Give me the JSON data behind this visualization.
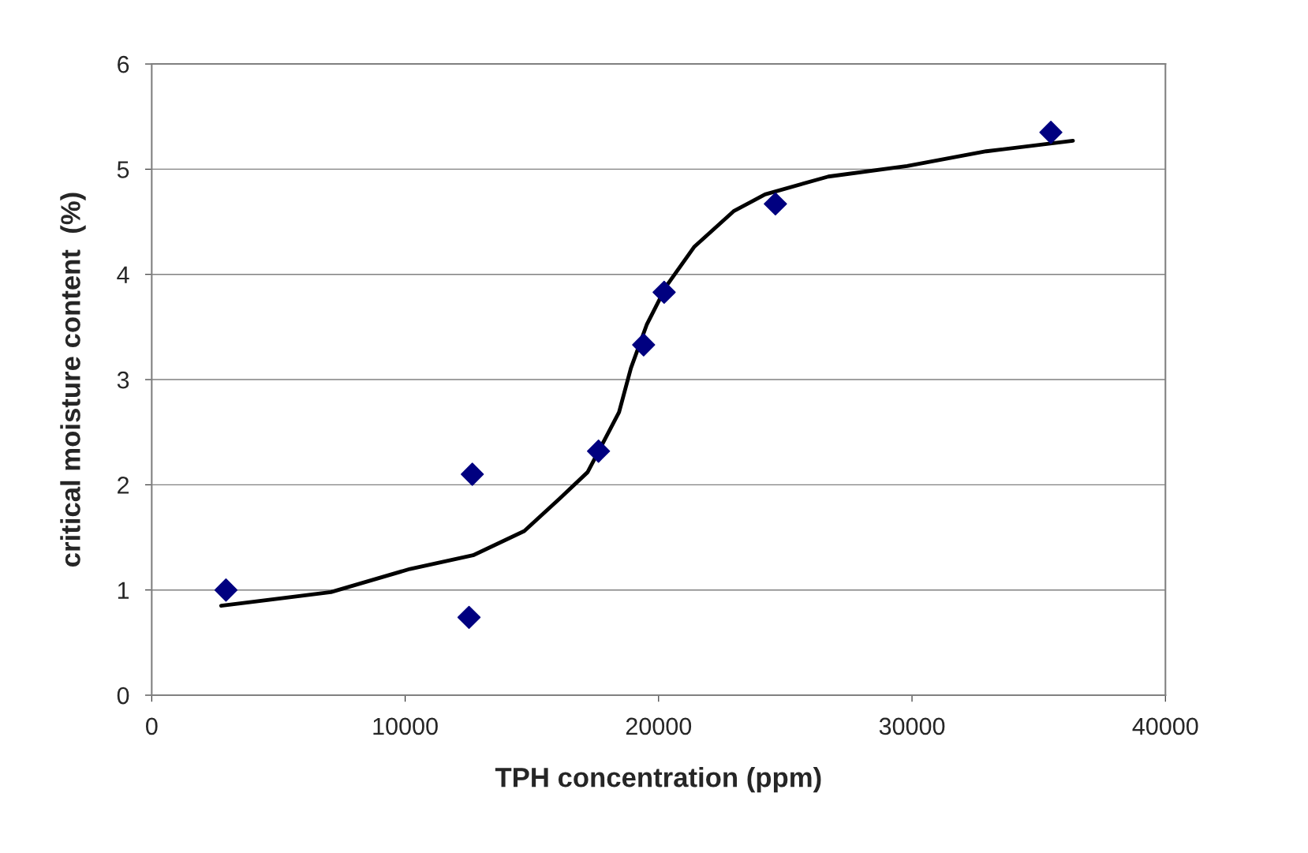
{
  "chart_data": {
    "type": "scatter",
    "xlabel": "TPH concentration (ppm)",
    "ylabel": "critical moisture content  (%)",
    "xlim": [
      0,
      40000
    ],
    "xticks": [
      0,
      10000,
      20000,
      30000,
      40000
    ],
    "ylim": [
      0,
      6
    ],
    "yticks": [
      0,
      1,
      2,
      3,
      4,
      5,
      6
    ],
    "grid": "y",
    "legend": false,
    "series": [
      {
        "marker": "diamond",
        "color": "#000080",
        "x": [
          2930,
          12650,
          12520,
          17630,
          19410,
          20220,
          24610,
          35480
        ],
        "values": [
          1.0,
          2.1,
          0.74,
          2.32,
          3.33,
          3.83,
          4.67,
          5.35
        ]
      },
      {
        "type": "line",
        "marker": "none",
        "line_style": "solid",
        "color": "#000000",
        "x": [
          2740,
          7070,
          10190,
          12680,
          14700,
          16100,
          17200,
          18440,
          18910,
          19530,
          20310,
          21400,
          22960,
          24200,
          26700,
          29810,
          32930,
          36350
        ],
        "values": [
          0.85,
          0.98,
          1.2,
          1.33,
          1.56,
          1.87,
          2.12,
          2.69,
          3.11,
          3.52,
          3.89,
          4.26,
          4.6,
          4.76,
          4.93,
          5.03,
          5.17,
          5.27
        ]
      }
    ]
  }
}
